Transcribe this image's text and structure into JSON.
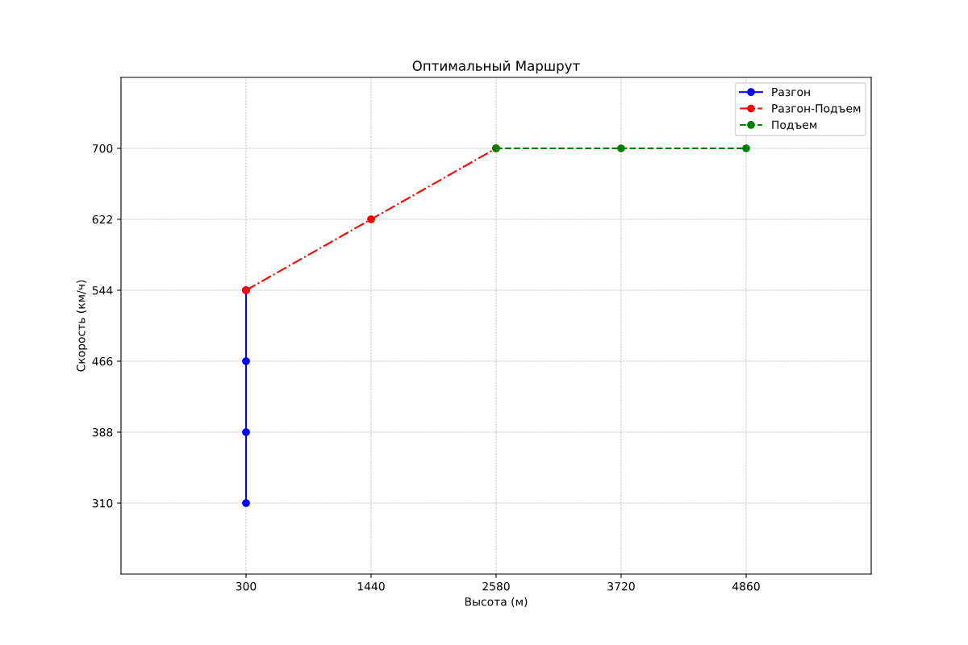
{
  "chart_data": {
    "type": "line",
    "title": "Оптимальный Маршрут",
    "xlabel": "Высота (м)",
    "ylabel": "Скорость (км/ч)",
    "series": [
      {
        "name": "Разгон",
        "color": "#0000ff",
        "x": [
          300,
          300,
          300,
          300
        ],
        "values": [
          310,
          388,
          466,
          544
        ],
        "line_style": "solid"
      },
      {
        "name": "Разгон-Подъем",
        "color": "#ff0000",
        "x": [
          300,
          1440,
          2580
        ],
        "values": [
          544,
          622,
          700
        ],
        "line_style": "dashdot"
      },
      {
        "name": "Подъем",
        "color": "#008000",
        "x": [
          2580,
          3720,
          4860
        ],
        "values": [
          700,
          700,
          700
        ],
        "line_style": "dashed"
      }
    ],
    "xlim": [
      -840,
      6000
    ],
    "xticks": [
      300,
      1440,
      2580,
      3720,
      4860
    ],
    "ylim": [
      232,
      778
    ],
    "yticks": [
      310,
      388,
      466,
      544,
      622,
      700
    ],
    "grid": true,
    "legend": "top right",
    "marker": "circle"
  }
}
